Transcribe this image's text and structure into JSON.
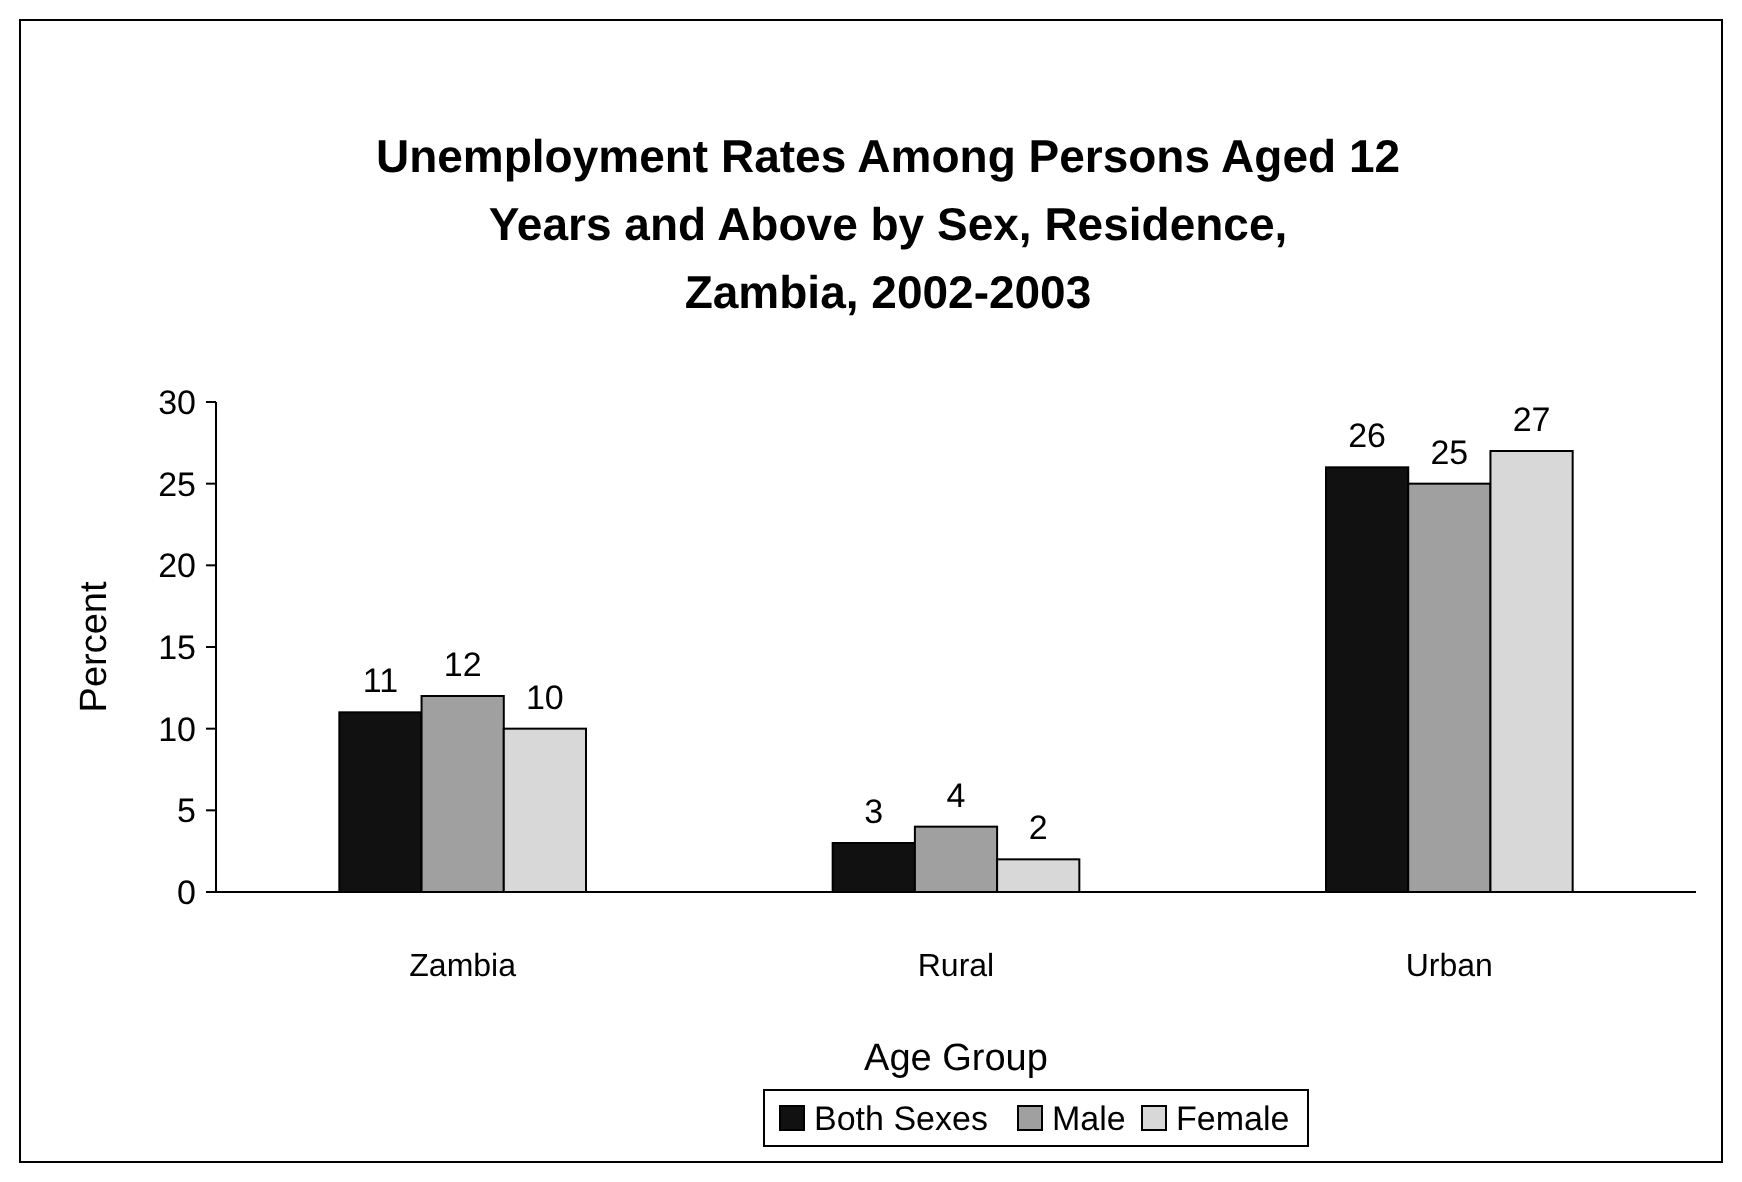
{
  "chart_data": {
    "type": "bar",
    "title": "Unemployment Rates Among Persons Aged 12 Years and Above by Sex, Residence, Zambia, 2002-2003",
    "xlabel": "Age Group",
    "ylabel": "Percent",
    "categories": [
      "Zambia",
      "Rural",
      "Urban"
    ],
    "series": [
      {
        "name": "Both Sexes",
        "color": "#111111",
        "values": [
          11,
          3,
          26
        ]
      },
      {
        "name": "Male",
        "color": "#a0a0a0",
        "values": [
          12,
          4,
          25
        ]
      },
      {
        "name": "Female",
        "color": "#d8d8d8",
        "values": [
          10,
          2,
          27
        ]
      }
    ],
    "ylim": [
      0,
      30
    ],
    "yticks": [
      0,
      5,
      10,
      15,
      20,
      25,
      30
    ],
    "data_labels": true,
    "legend": "bottom",
    "grid": false
  }
}
